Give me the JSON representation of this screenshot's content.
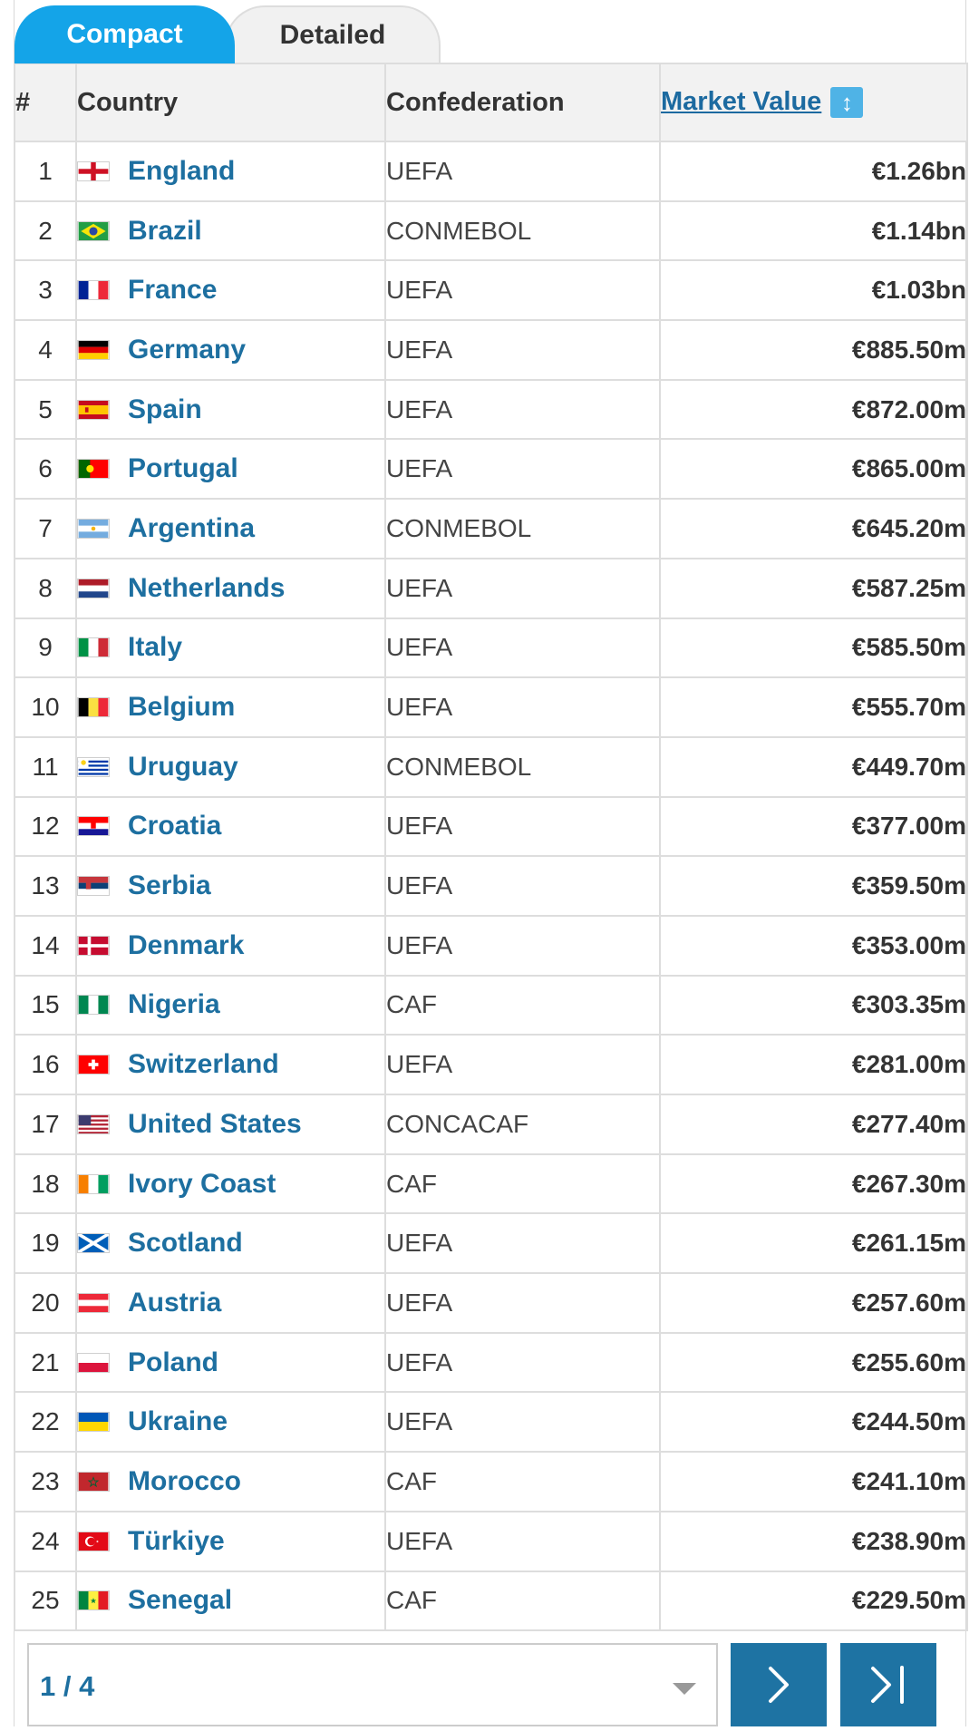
{
  "tabs": {
    "compact": "Compact",
    "detailed": "Detailed"
  },
  "table": {
    "headers": {
      "rank": "#",
      "country": "Country",
      "confederation": "Confederation",
      "market_value": "Market Value"
    },
    "rows": [
      {
        "rank": "1",
        "country": "England",
        "confederation": "UEFA",
        "value": "€1.26bn",
        "flag": "england-flag"
      },
      {
        "rank": "2",
        "country": "Brazil",
        "confederation": "CONMEBOL",
        "value": "€1.14bn",
        "flag": "brazil-flag"
      },
      {
        "rank": "3",
        "country": "France",
        "confederation": "UEFA",
        "value": "€1.03bn",
        "flag": "france-flag"
      },
      {
        "rank": "4",
        "country": "Germany",
        "confederation": "UEFA",
        "value": "€885.50m",
        "flag": "germany-flag"
      },
      {
        "rank": "5",
        "country": "Spain",
        "confederation": "UEFA",
        "value": "€872.00m",
        "flag": "spain-flag"
      },
      {
        "rank": "6",
        "country": "Portugal",
        "confederation": "UEFA",
        "value": "€865.00m",
        "flag": "portugal-flag"
      },
      {
        "rank": "7",
        "country": "Argentina",
        "confederation": "CONMEBOL",
        "value": "€645.20m",
        "flag": "argentina-flag"
      },
      {
        "rank": "8",
        "country": "Netherlands",
        "confederation": "UEFA",
        "value": "€587.25m",
        "flag": "netherlands-flag"
      },
      {
        "rank": "9",
        "country": "Italy",
        "confederation": "UEFA",
        "value": "€585.50m",
        "flag": "italy-flag"
      },
      {
        "rank": "10",
        "country": "Belgium",
        "confederation": "UEFA",
        "value": "€555.70m",
        "flag": "belgium-flag"
      },
      {
        "rank": "11",
        "country": "Uruguay",
        "confederation": "CONMEBOL",
        "value": "€449.70m",
        "flag": "uruguay-flag"
      },
      {
        "rank": "12",
        "country": "Croatia",
        "confederation": "UEFA",
        "value": "€377.00m",
        "flag": "croatia-flag"
      },
      {
        "rank": "13",
        "country": "Serbia",
        "confederation": "UEFA",
        "value": "€359.50m",
        "flag": "serbia-flag"
      },
      {
        "rank": "14",
        "country": "Denmark",
        "confederation": "UEFA",
        "value": "€353.00m",
        "flag": "denmark-flag"
      },
      {
        "rank": "15",
        "country": "Nigeria",
        "confederation": "CAF",
        "value": "€303.35m",
        "flag": "nigeria-flag"
      },
      {
        "rank": "16",
        "country": "Switzerland",
        "confederation": "UEFA",
        "value": "€281.00m",
        "flag": "switzerland-flag"
      },
      {
        "rank": "17",
        "country": "United States",
        "confederation": "CONCACAF",
        "value": "€277.40m",
        "flag": "usa-flag"
      },
      {
        "rank": "18",
        "country": "Ivory Coast",
        "confederation": "CAF",
        "value": "€267.30m",
        "flag": "ivory-coast-flag"
      },
      {
        "rank": "19",
        "country": "Scotland",
        "confederation": "UEFA",
        "value": "€261.15m",
        "flag": "scotland-flag"
      },
      {
        "rank": "20",
        "country": "Austria",
        "confederation": "UEFA",
        "value": "€257.60m",
        "flag": "austria-flag"
      },
      {
        "rank": "21",
        "country": "Poland",
        "confederation": "UEFA",
        "value": "€255.60m",
        "flag": "poland-flag"
      },
      {
        "rank": "22",
        "country": "Ukraine",
        "confederation": "UEFA",
        "value": "€244.50m",
        "flag": "ukraine-flag"
      },
      {
        "rank": "23",
        "country": "Morocco",
        "confederation": "CAF",
        "value": "€241.10m",
        "flag": "morocco-flag"
      },
      {
        "rank": "24",
        "country": "Türkiye",
        "confederation": "UEFA",
        "value": "€238.90m",
        "flag": "turkiye-flag"
      },
      {
        "rank": "25",
        "country": "Senegal",
        "confederation": "CAF",
        "value": "€229.50m",
        "flag": "senegal-flag"
      }
    ]
  },
  "pagination": {
    "current": "1 / 4",
    "next_icon": "chevron-right-icon",
    "last_icon": "last-page-icon"
  },
  "colors": {
    "tab_active": "#14a4e8",
    "link": "#1d6fa0",
    "pager_button": "#1e73a3",
    "sort_icon": "#4fb3e6"
  }
}
